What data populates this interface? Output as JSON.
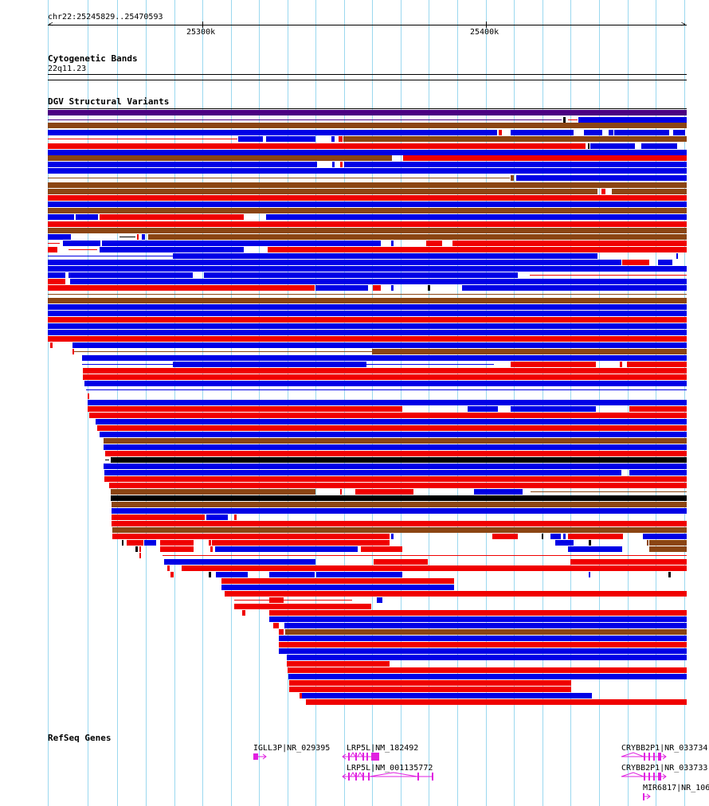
{
  "ruler": {
    "locus": "chr22:25245829..25470593",
    "tick_labels": [
      "25300k",
      "25400k"
    ]
  },
  "tracks": {
    "cytoband": {
      "title": "Cytogenetic Bands",
      "band": "22q11.23"
    },
    "dgv": {
      "title": "DGV Structural Variants"
    },
    "refseq": {
      "title": "RefSeq Genes"
    }
  },
  "genes": [
    {
      "label": "IGLL3P|NR_029395"
    },
    {
      "label": "LRP5L|NM_182492"
    },
    {
      "label": "LRP5L|NM_001135772"
    },
    {
      "label": "CRYBB2P1|NR_033734"
    },
    {
      "label": "CRYBB2P1|NR_033733"
    },
    {
      "label": "MIR6817|NR_106"
    }
  ],
  "colors": {
    "gain": "#0000e6",
    "loss": "#f00000",
    "both": "#8b4513",
    "inversion": "#000000",
    "complex": "#4b0082",
    "gene": "#e020e0",
    "grid": "#9bd8ef"
  }
}
